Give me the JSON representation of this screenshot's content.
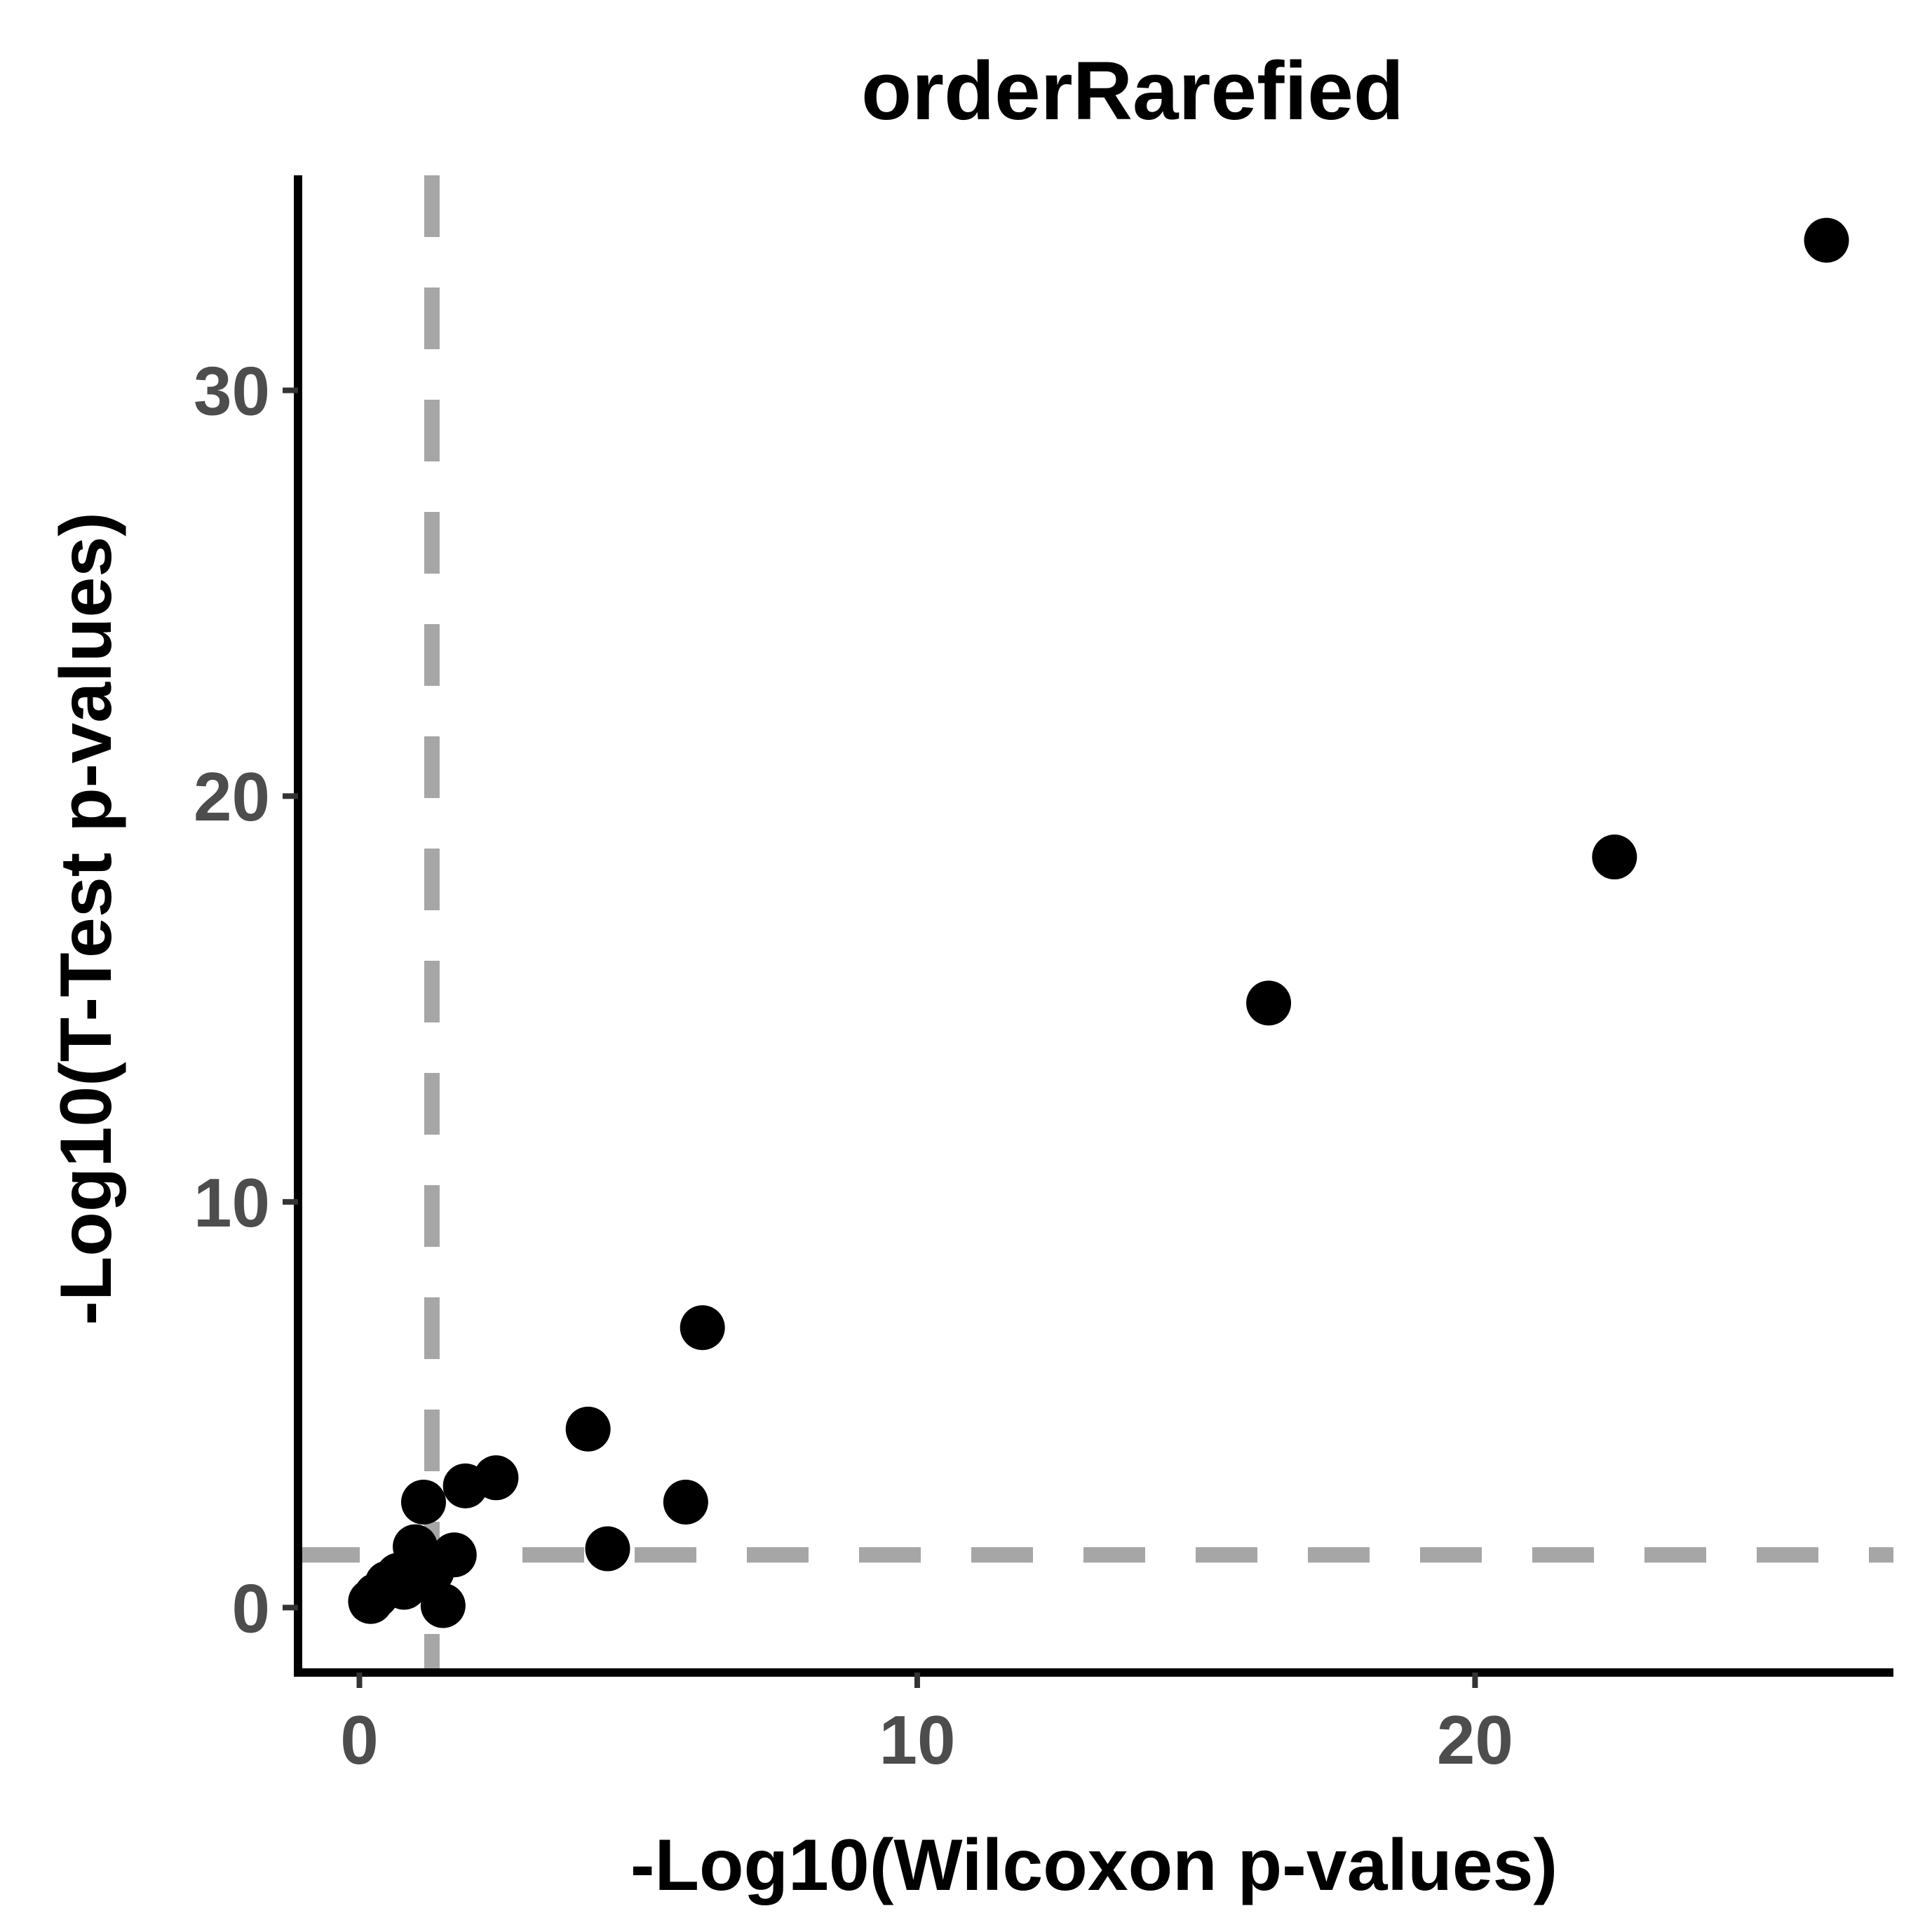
{
  "chart_data": {
    "type": "scatter",
    "title": "orderRarefied",
    "xlabel": "-Log10(Wilcoxon p-values)",
    "ylabel": "-Log10(T-Test p-values)",
    "xlim": [
      -1.1,
      27.5
    ],
    "ylim": [
      -1.6,
      35.3
    ],
    "xticks": [
      0,
      10,
      20
    ],
    "xtick_labels": [
      "0",
      "10",
      "20"
    ],
    "yticks": [
      0,
      10,
      20,
      30
    ],
    "ytick_labels": [
      "0",
      "10",
      "20",
      "30"
    ],
    "grid": false,
    "threshold_lines": {
      "x": 1.3,
      "y": 1.3,
      "style": "dashed",
      "color": "#a6a6a6"
    },
    "point_color": "#000000",
    "points": [
      {
        "x": 0.2,
        "y": 0.15
      },
      {
        "x": 0.3,
        "y": 0.3
      },
      {
        "x": 0.5,
        "y": 0.6
      },
      {
        "x": 0.7,
        "y": 0.8
      },
      {
        "x": 0.8,
        "y": 0.5
      },
      {
        "x": 1.0,
        "y": 1.5
      },
      {
        "x": 1.15,
        "y": 2.6
      },
      {
        "x": 1.3,
        "y": 0.9
      },
      {
        "x": 1.5,
        "y": 0.05
      },
      {
        "x": 1.7,
        "y": 1.3
      },
      {
        "x": 1.9,
        "y": 3.0
      },
      {
        "x": 2.45,
        "y": 3.2
      },
      {
        "x": 4.1,
        "y": 4.4
      },
      {
        "x": 4.45,
        "y": 1.45
      },
      {
        "x": 5.85,
        "y": 2.6
      },
      {
        "x": 6.15,
        "y": 6.9
      },
      {
        "x": 16.3,
        "y": 14.9
      },
      {
        "x": 22.5,
        "y": 18.5
      },
      {
        "x": 26.3,
        "y": 33.7
      }
    ]
  }
}
